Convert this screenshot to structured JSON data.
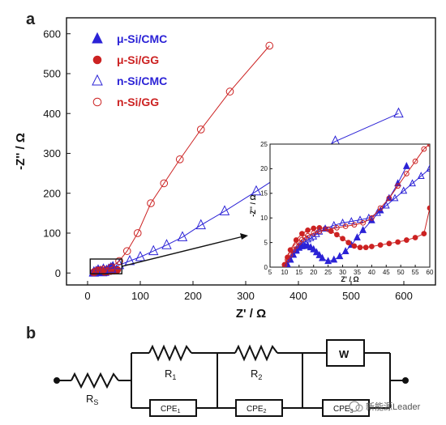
{
  "panels": {
    "a": "a",
    "b": "b"
  },
  "colors": {
    "cmc": "#2b22d6",
    "gg": "#cc2222",
    "axis": "#111111"
  },
  "chart_data": [
    {
      "type": "scatter",
      "title": "",
      "xlabel": "Z' / Ω",
      "ylabel": "-Z'' / Ω",
      "xlim": [
        -40,
        660
      ],
      "ylim": [
        -30,
        640
      ],
      "xticks": [
        0,
        100,
        200,
        300,
        400,
        500,
        600
      ],
      "yticks": [
        0,
        100,
        200,
        300,
        400,
        500,
        600
      ],
      "legend": "top-left",
      "series": [
        {
          "name": "μ-Si/CMC",
          "marker": "triangle-filled",
          "color": "#2b22d6",
          "x": [
            12,
            16,
            20,
            24,
            28,
            32,
            36,
            40,
            44,
            48
          ],
          "y": [
            1,
            3,
            6,
            4,
            2,
            3,
            6,
            9,
            12,
            15
          ]
        },
        {
          "name": "μ-Si/GG",
          "marker": "circle-filled",
          "color": "#cc2222",
          "x": [
            12,
            16,
            20,
            26,
            32,
            38,
            44,
            50,
            56
          ],
          "y": [
            1,
            4,
            7,
            7,
            3,
            4,
            5,
            6,
            8
          ]
        },
        {
          "name": "n-Si/CMC",
          "marker": "triangle-open",
          "color": "#2b22d6",
          "x": [
            12,
            20,
            30,
            45,
            60,
            80,
            100,
            125,
            150,
            180,
            215,
            260,
            320,
            390,
            470,
            590
          ],
          "y": [
            2,
            7,
            9,
            11,
            20,
            30,
            40,
            55,
            70,
            90,
            120,
            155,
            205,
            265,
            330,
            400
          ],
          "line": true
        },
        {
          "name": "n-Si/GG",
          "marker": "circle-open",
          "color": "#cc2222",
          "x": [
            12,
            20,
            30,
            45,
            60,
            75,
            95,
            120,
            145,
            175,
            215,
            270,
            345
          ],
          "y": [
            2,
            6,
            9,
            14,
            30,
            55,
            100,
            175,
            225,
            285,
            360,
            455,
            570
          ],
          "line": true
        }
      ]
    },
    {
      "type": "scatter",
      "title": "",
      "xlabel": "Z' / Ω",
      "ylabel": "-Z'' / Ω",
      "xlim": [
        5,
        60
      ],
      "ylim": [
        0,
        25
      ],
      "xticks": [
        5,
        10,
        15,
        20,
        25,
        30,
        35,
        40,
        45,
        50,
        55,
        60
      ],
      "yticks": [
        0,
        5,
        10,
        15,
        20,
        25
      ],
      "series": [
        {
          "name": "μ-Si/CMC",
          "marker": "triangle-filled",
          "color": "#2b22d6",
          "x": [
            11,
            12,
            13,
            14,
            15,
            16,
            17,
            18,
            19,
            20,
            21,
            22,
            23,
            25,
            27,
            29,
            31,
            33,
            35,
            37,
            40,
            43,
            46,
            49,
            52
          ],
          "y": [
            0.5,
            1.5,
            2.5,
            3.3,
            3.9,
            4.2,
            4.3,
            4.3,
            4.0,
            3.6,
            3.0,
            2.4,
            1.8,
            1.2,
            1.5,
            2.2,
            3.2,
            4.5,
            6.0,
            7.5,
            9.5,
            11.5,
            14.0,
            17.0,
            20.5
          ],
          "line": true
        },
        {
          "name": "μ-Si/GG",
          "marker": "circle-filled",
          "color": "#cc2222",
          "x": [
            10,
            11,
            12,
            14,
            16,
            18,
            20,
            22,
            24,
            26,
            28,
            30,
            32,
            34,
            36,
            38,
            40,
            43,
            46,
            49,
            52,
            55,
            58,
            60
          ],
          "y": [
            0.5,
            2.0,
            3.5,
            5.5,
            6.8,
            7.5,
            7.9,
            8.0,
            7.8,
            7.3,
            6.6,
            5.8,
            5.0,
            4.3,
            4.0,
            4.0,
            4.2,
            4.5,
            4.8,
            5.1,
            5.5,
            6.0,
            6.8,
            12.0
          ],
          "line": true
        },
        {
          "name": "n-Si/CMC",
          "marker": "triangle-open",
          "color": "#2b22d6",
          "x": [
            11,
            12,
            13,
            14,
            15,
            16,
            17,
            18,
            19,
            20,
            21,
            22,
            24,
            27,
            30,
            33,
            36,
            39,
            42,
            45,
            48,
            51,
            54,
            57,
            60
          ],
          "y": [
            0.5,
            1.5,
            2.5,
            3.5,
            4.2,
            4.8,
            5.2,
            5.6,
            5.9,
            6.2,
            6.7,
            7.2,
            7.8,
            8.5,
            9.0,
            9.3,
            9.6,
            10.0,
            11.0,
            12.5,
            14.0,
            15.5,
            17.0,
            18.5,
            20.0
          ],
          "line": true
        },
        {
          "name": "n-Si/GG",
          "marker": "circle-open",
          "color": "#cc2222",
          "x": [
            10,
            11,
            12,
            13,
            14,
            15,
            16,
            17,
            18,
            20,
            22,
            25,
            28,
            31,
            34,
            37,
            40,
            43,
            46,
            49,
            52,
            55,
            58,
            60
          ],
          "y": [
            0.5,
            1.5,
            2.5,
            3.5,
            4.3,
            5.0,
            5.6,
            6.0,
            6.4,
            6.9,
            7.3,
            7.7,
            8.0,
            8.3,
            8.6,
            9.0,
            10.0,
            12.0,
            14.0,
            16.5,
            19.0,
            21.5,
            24.0,
            25.0
          ],
          "line": true
        }
      ]
    }
  ],
  "circuit": {
    "rs_label": "R",
    "rs_sub": "S",
    "r1_label": "R",
    "r1_sub": "1",
    "r2_label": "R",
    "r2_sub": "2",
    "w_label": "W",
    "cpe1_label": "CPE",
    "cpe1_sub": "1",
    "cpe2_label": "CPE",
    "cpe2_sub": "2",
    "cpe3_label": "CPE",
    "cpe3_sub": "3"
  },
  "watermark": "新能源Leader"
}
